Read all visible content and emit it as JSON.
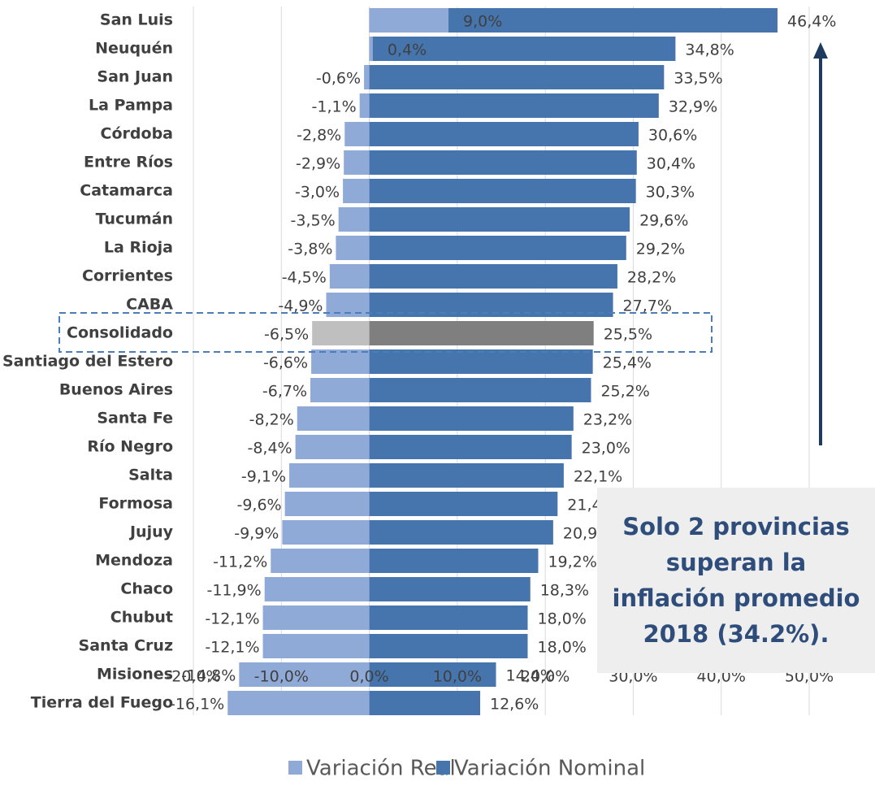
{
  "chart_data": {
    "type": "bar",
    "orientation": "horizontal",
    "categories": [
      "San Luis",
      "Neuquén",
      "San Juan",
      "La Pampa",
      "Córdoba",
      "Entre Ríos",
      "Catamarca",
      "Tucumán",
      "La Rioja",
      "Corrientes",
      "CABA",
      "Consolidado",
      "Santiago del Estero",
      "Buenos Aires",
      "Santa Fe",
      "Río Negro",
      "Salta",
      "Formosa",
      "Jujuy",
      "Mendoza",
      "Chaco",
      "Chubut",
      "Santa Cruz",
      "Misiones",
      "Tierra del Fuego"
    ],
    "series": [
      {
        "name": "Variación Nominal",
        "color": "#4674ad",
        "highlight_color": "#7f7f7f",
        "values": [
          46.4,
          34.8,
          33.5,
          32.9,
          30.6,
          30.4,
          30.3,
          29.6,
          29.2,
          28.2,
          27.7,
          25.5,
          25.4,
          25.2,
          23.2,
          23.0,
          22.1,
          21.4,
          20.9,
          19.2,
          18.3,
          18.0,
          18.0,
          14.4,
          12.6
        ],
        "value_labels": [
          "46,4%",
          "34,8%",
          "33,5%",
          "32,9%",
          "30,6%",
          "30,4%",
          "30,3%",
          "29,6%",
          "29,2%",
          "28,2%",
          "27,7%",
          "25,5%",
          "25,4%",
          "25,2%",
          "23,2%",
          "23,0%",
          "22,1%",
          "21,4%",
          "20,9%",
          "19,2%",
          "18,3%",
          "18,0%",
          "18,0%",
          "14,4%",
          "12,6%"
        ]
      },
      {
        "name": "Variación Real",
        "color": "#8faad6",
        "highlight_color": "#bfbfbf",
        "values": [
          9.0,
          0.4,
          -0.6,
          -1.1,
          -2.8,
          -2.9,
          -3.0,
          -3.5,
          -3.8,
          -4.5,
          -4.9,
          -6.5,
          -6.6,
          -6.7,
          -8.2,
          -8.4,
          -9.1,
          -9.6,
          -9.9,
          -11.2,
          -11.9,
          -12.1,
          -12.1,
          -14.8,
          -16.1
        ],
        "value_labels": [
          "9,0%",
          "0,4%",
          "-0,6%",
          "-1,1%",
          "-2,8%",
          "-2,9%",
          "-3,0%",
          "-3,5%",
          "-3,8%",
          "-4,5%",
          "-4,9%",
          "-6,5%",
          "-6,6%",
          "-6,7%",
          "-8,2%",
          "-8,4%",
          "-9,1%",
          "-9,6%",
          "-9,9%",
          "-11,2%",
          "-11,9%",
          "-12,1%",
          "-12,1%",
          "-14,8%",
          "-16,1%"
        ]
      }
    ],
    "highlight_index": 11,
    "xlim": [
      -20,
      50
    ],
    "xticks": [
      {
        "value": -20,
        "label": "-20,0%"
      },
      {
        "value": -10,
        "label": "-10,0%"
      },
      {
        "value": 0,
        "label": "0,0%"
      },
      {
        "value": 10,
        "label": "10,0%"
      },
      {
        "value": 20,
        "label": "20,0%"
      },
      {
        "value": 30,
        "label": "30,0%"
      },
      {
        "value": 40,
        "label": "40,0%"
      },
      {
        "value": 50,
        "label": "50,0%"
      }
    ],
    "grid": true,
    "legend": "bottom",
    "annotation": "Solo 2 provincias superan la inflación promedio 2018 (34.2%)."
  }
}
